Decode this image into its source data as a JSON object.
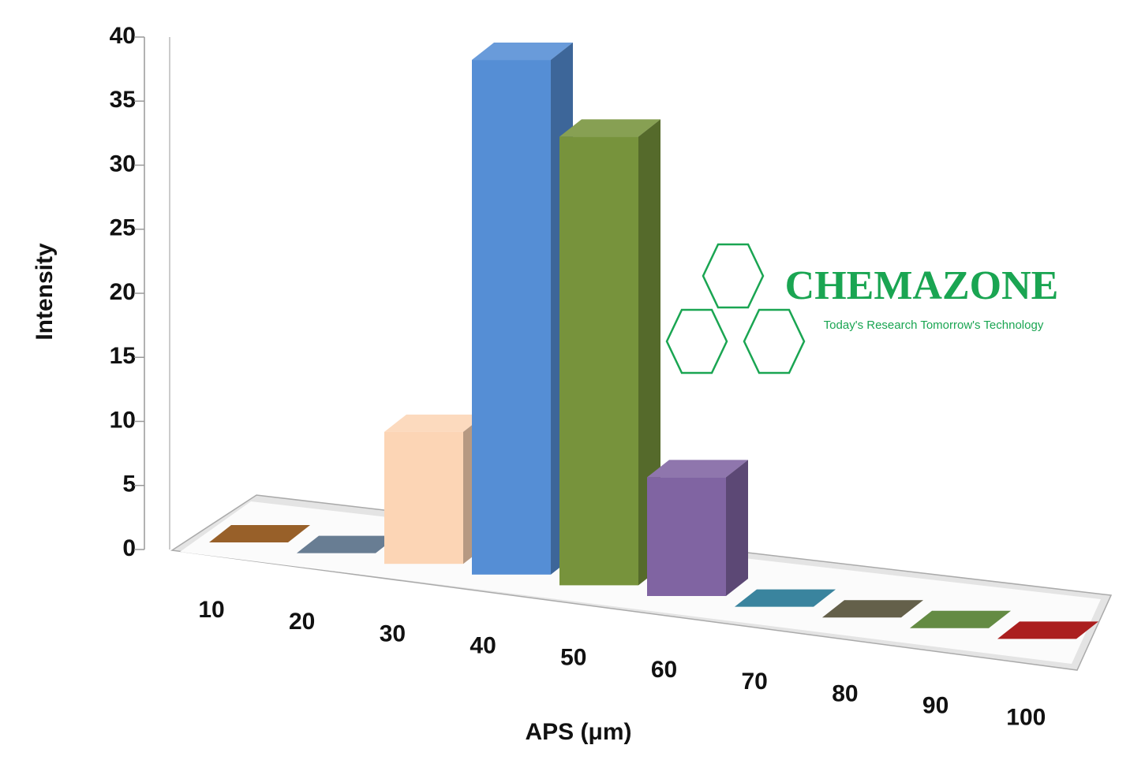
{
  "chart_data": {
    "type": "bar",
    "x_label": "APS (μm)",
    "y_label": "Intensity",
    "categories": [
      "10",
      "20",
      "30",
      "40",
      "50",
      "60",
      "70",
      "80",
      "90",
      "100"
    ],
    "values": [
      0,
      0,
      10,
      39,
      34,
      9,
      0,
      0,
      0,
      0
    ],
    "colors": [
      "#8a4a0c",
      "#546b85",
      "#fcd5b5",
      "#558ed5",
      "#77933c",
      "#8064a2",
      "#1f7391",
      "#4f4a32",
      "#4f7b2a",
      "#a00000"
    ],
    "ylim": [
      0,
      40
    ],
    "yticks": [
      0,
      5,
      10,
      15,
      20,
      25,
      30,
      35,
      40
    ]
  },
  "watermark": {
    "title": "CHEMAZONE",
    "tagline": "Today's Research Tomorrow's Technology"
  }
}
